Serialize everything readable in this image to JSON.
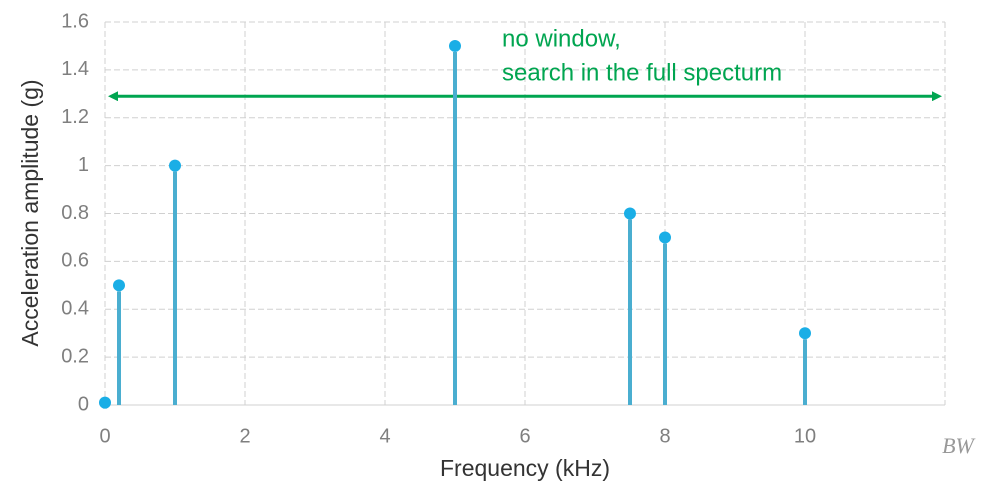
{
  "chart_data": {
    "type": "stem",
    "xlabel": "Frequency (kHz)",
    "ylabel": "Acceleration amplitude (g)",
    "x": [
      0,
      0.2,
      1,
      5,
      7.5,
      8,
      10
    ],
    "values": [
      0.01,
      0.5,
      1.0,
      1.5,
      0.8,
      0.7,
      0.3
    ],
    "color": "#4aaed0",
    "marker_color": "#1aaee6",
    "xlim": [
      0,
      12
    ],
    "xticks": [
      0,
      2,
      4,
      6,
      8,
      10
    ],
    "ylim": [
      0,
      1.6
    ],
    "yticks": [
      0,
      0.2,
      0.4,
      0.6,
      0.8,
      1,
      1.2,
      1.4,
      1.6
    ],
    "grid": true,
    "annotation": {
      "lines": [
        "no window,",
        "search in the full specturm"
      ],
      "arrow_y": 1.29,
      "color": "#00a550"
    },
    "corner_label": "BW"
  }
}
